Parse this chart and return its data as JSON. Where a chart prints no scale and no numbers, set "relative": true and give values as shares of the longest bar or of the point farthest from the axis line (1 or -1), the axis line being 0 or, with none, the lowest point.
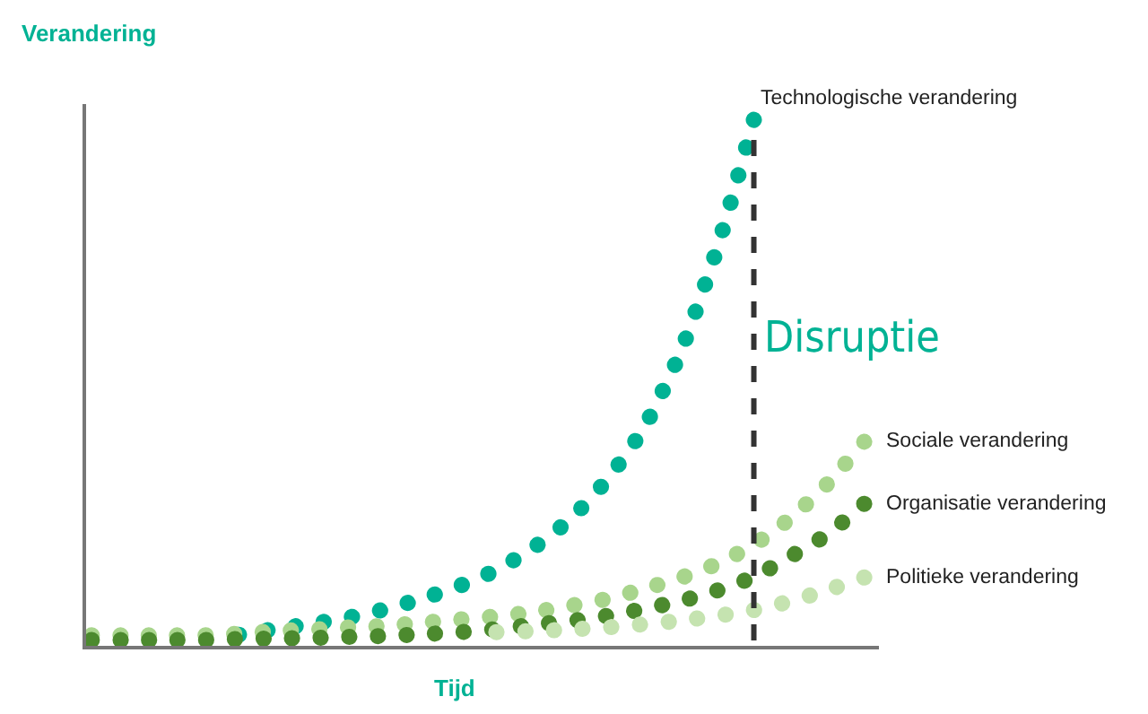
{
  "chart_data": {
    "type": "line",
    "relative": true,
    "xlabel": "Tijd",
    "ylabel": "Verandering",
    "legend": "right",
    "line_style": "dotted",
    "categories": [
      null,
      null,
      null,
      null,
      null,
      null,
      null,
      null,
      null,
      null,
      null,
      null,
      null,
      null,
      null,
      null,
      null,
      null,
      null,
      null,
      null,
      null
    ],
    "series": [
      {
        "name": "Technologische verandering",
        "color": "#00b294",
        "values": [
          null,
          null,
          null,
          null,
          0.021,
          0.032,
          0.042,
          0.054,
          0.07,
          0.09,
          0.114,
          0.144,
          0.186,
          0.24,
          0.315,
          0.413,
          0.557,
          0.755,
          1,
          null,
          null,
          null
        ]
      },
      {
        "name": "Sociale verandering",
        "color": "#a8d58c",
        "values": [
          0.02,
          0.02,
          0.02,
          0.02,
          0.023,
          0.028,
          0.031,
          0.035,
          0.038,
          0.044,
          0.05,
          0.056,
          0.064,
          0.076,
          0.089,
          0.108,
          0.129,
          0.156,
          0.192,
          0.243,
          0.308,
          0.388
        ]
      },
      {
        "name": "Organisatie verandering",
        "color": "#4c8a2e",
        "values": [
          0.011,
          0.011,
          0.011,
          0.011,
          0.013,
          0.014,
          0.015,
          0.017,
          0.019,
          0.022,
          0.026,
          0.032,
          0.04,
          0.047,
          0.057,
          0.07,
          0.085,
          0.105,
          0.131,
          0.17,
          0.212,
          0.27
        ]
      },
      {
        "name": "Politieke verandering",
        "color": "#c5e3b0",
        "values": [
          null,
          null,
          null,
          null,
          null,
          null,
          null,
          null,
          null,
          null,
          null,
          0.026,
          0.028,
          0.031,
          0.035,
          0.041,
          0.048,
          0.057,
          0.068,
          0.085,
          0.106,
          0.13
        ]
      }
    ],
    "ref_lines": [
      {
        "axis": "x",
        "label": "Disruptie",
        "color": "#333333",
        "line_style": "dashed"
      }
    ]
  }
}
